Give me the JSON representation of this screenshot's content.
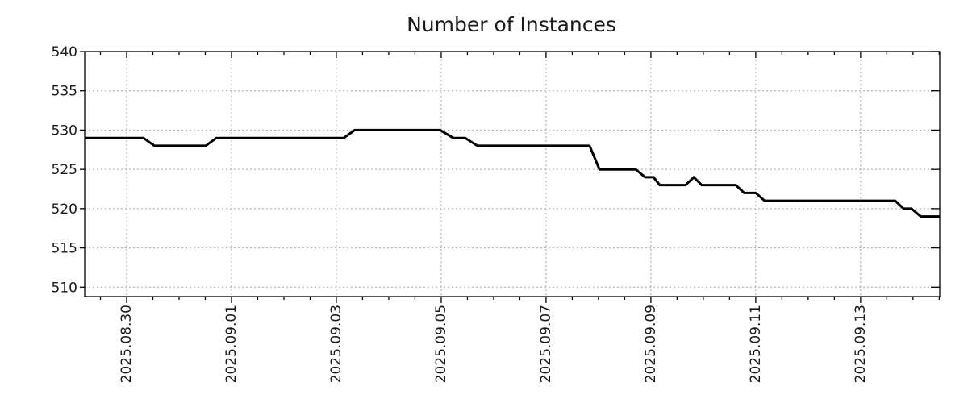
{
  "title": "Number of Instances",
  "colors": {
    "line": "#000000",
    "grid": "#a6a6a6",
    "frame": "#000000",
    "text": "#1a1a1a",
    "background": "#ffffff"
  },
  "chart_data": {
    "type": "line",
    "title": "Number of Instances",
    "xlabel": "",
    "ylabel": "",
    "grid": true,
    "legend": "none",
    "x_unit": "days since 2025-08-29 00:00",
    "x_range": [
      0.2,
      16.51
    ],
    "y_range": [
      508.8,
      540
    ],
    "y_ticks": [
      510,
      515,
      520,
      525,
      530,
      535,
      540
    ],
    "x_major_ticks": [
      {
        "t": 1,
        "label": "2025.08.30"
      },
      {
        "t": 3,
        "label": "2025.09.01"
      },
      {
        "t": 5,
        "label": "2025.09.03"
      },
      {
        "t": 7,
        "label": "2025.09.05"
      },
      {
        "t": 9,
        "label": "2025.09.07"
      },
      {
        "t": 11,
        "label": "2025.09.09"
      },
      {
        "t": 13,
        "label": "2025.09.11"
      },
      {
        "t": 15,
        "label": "2025.09.13"
      }
    ],
    "x_minor_step": 0.5,
    "series": [
      {
        "name": "instances",
        "points": [
          [
            0.2,
            529
          ],
          [
            1.32,
            529
          ],
          [
            1.53,
            528
          ],
          [
            2.51,
            528
          ],
          [
            2.71,
            529
          ],
          [
            5.14,
            529
          ],
          [
            5.35,
            530
          ],
          [
            6.98,
            530
          ],
          [
            7.23,
            529
          ],
          [
            7.46,
            529
          ],
          [
            7.69,
            528
          ],
          [
            9.83,
            528
          ],
          [
            10.02,
            525
          ],
          [
            10.71,
            525
          ],
          [
            10.89,
            524
          ],
          [
            11.05,
            524
          ],
          [
            11.17,
            523
          ],
          [
            11.66,
            523
          ],
          [
            11.82,
            524
          ],
          [
            11.97,
            523
          ],
          [
            12.62,
            523
          ],
          [
            12.78,
            522
          ],
          [
            13.0,
            522
          ],
          [
            13.17,
            521
          ],
          [
            15.66,
            521
          ],
          [
            15.82,
            520
          ],
          [
            15.97,
            520
          ],
          [
            16.15,
            519
          ],
          [
            16.51,
            519
          ]
        ]
      }
    ]
  }
}
